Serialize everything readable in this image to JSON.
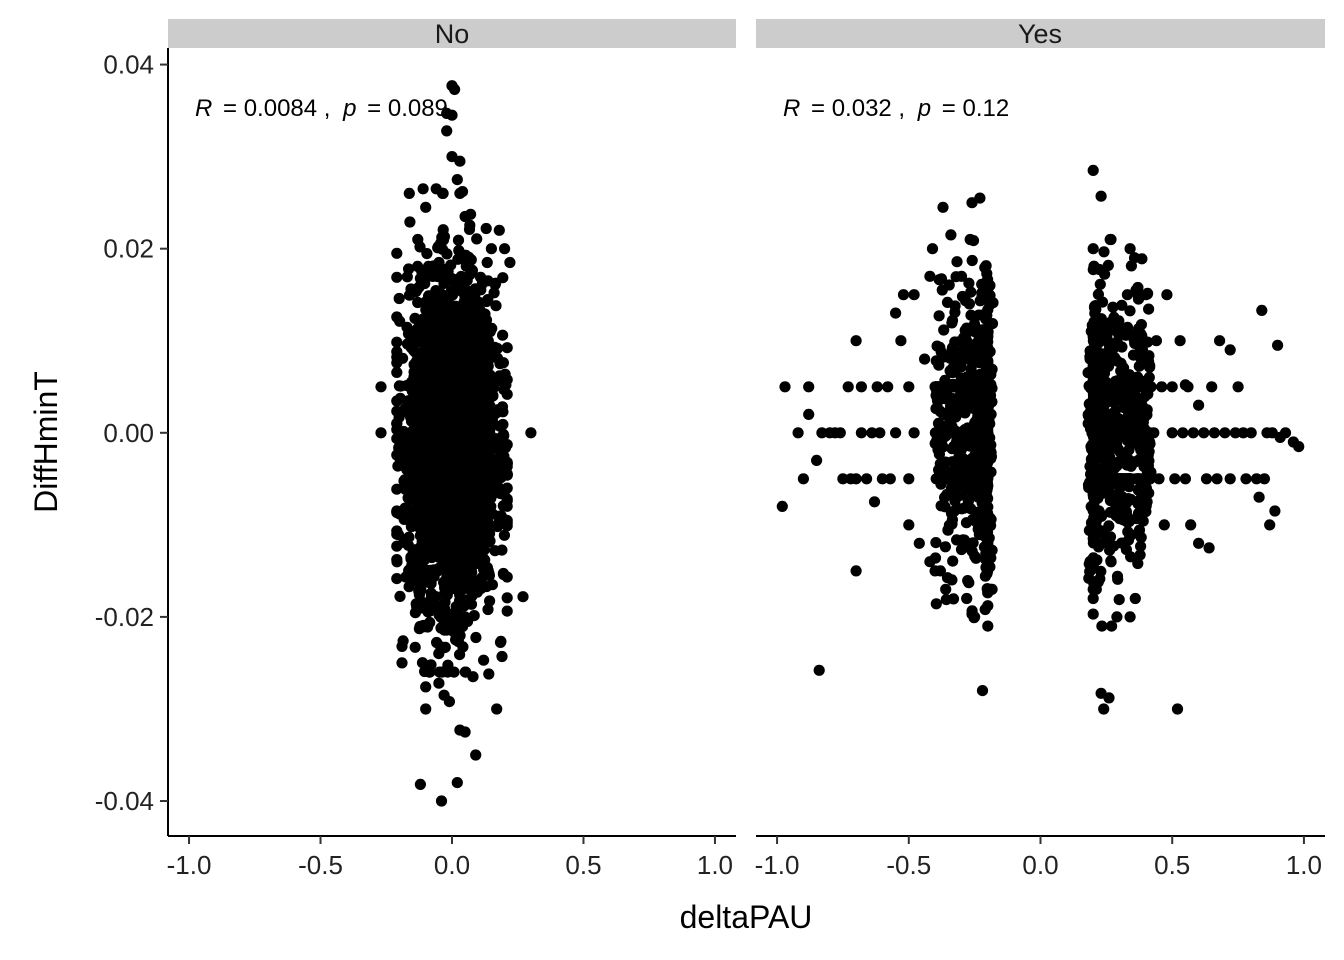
{
  "chart_data": {
    "type": "scatter",
    "xlabel": "deltaPAU",
    "ylabel": "DiffHminT",
    "xlim": [
      -1.08,
      1.08
    ],
    "ylim": [
      -0.0438,
      0.0418
    ],
    "x_ticks": [
      -1.0,
      -0.5,
      0.0,
      0.5,
      1.0
    ],
    "x_tick_labels": [
      "-1.0",
      "-0.5",
      "0.0",
      "0.5",
      "1.0"
    ],
    "y_ticks": [
      -0.04,
      -0.02,
      0.0,
      0.02,
      0.04
    ],
    "y_tick_labels": [
      "-0.04",
      "-0.02",
      "0.00",
      "0.02",
      "0.04"
    ],
    "grid": false,
    "point_color": "#000000",
    "strip_color": "#cccccc",
    "panels": [
      {
        "strip_label": "No",
        "stat": {
          "r_label": "R",
          "r_value": "= 0.0084 ,",
          "p_label": "p",
          "p_value": "= 0.089"
        },
        "distribution": {
          "x_center": 0.0,
          "x_sd": 0.082,
          "x_range": [
            -0.21,
            0.21
          ],
          "y_center": -0.001,
          "y_sd": 0.0085,
          "y_range": [
            -0.026,
            0.026
          ],
          "bulk_count": 3200
        },
        "points": [
          [
            -0.27,
            0.005
          ],
          [
            -0.27,
            0.0
          ],
          [
            0.3,
            0.0
          ],
          [
            0.27,
            -0.0178
          ],
          [
            0.0,
            0.0377
          ],
          [
            0.01,
            0.0373
          ],
          [
            -0.02,
            0.0347
          ],
          [
            0.0,
            0.0345
          ],
          [
            -0.02,
            0.0328
          ],
          [
            0.03,
            0.0295
          ],
          [
            0.0,
            0.03
          ],
          [
            0.02,
            0.0275
          ],
          [
            -0.11,
            0.0265
          ],
          [
            -0.06,
            0.0265
          ],
          [
            0.04,
            0.0262
          ],
          [
            -0.1,
            0.0245
          ],
          [
            0.05,
            0.0235
          ],
          [
            0.15,
            0.02
          ],
          [
            0.2,
            0.02
          ],
          [
            -0.16,
            0.0229
          ],
          [
            -0.19,
            -0.0232
          ],
          [
            -0.19,
            -0.025
          ],
          [
            -0.08,
            -0.0252
          ],
          [
            -0.1,
            -0.0276
          ],
          [
            -0.05,
            -0.0272
          ],
          [
            -0.03,
            -0.0285
          ],
          [
            -0.01,
            -0.0292
          ],
          [
            -0.1,
            -0.03
          ],
          [
            0.17,
            -0.03
          ],
          [
            0.03,
            -0.0323
          ],
          [
            0.05,
            -0.0325
          ],
          [
            0.09,
            -0.035
          ],
          [
            -0.12,
            -0.0382
          ],
          [
            0.02,
            -0.038
          ],
          [
            -0.04,
            -0.04
          ],
          [
            0.08,
            -0.0265
          ],
          [
            0.14,
            -0.0262
          ],
          [
            0.19,
            -0.0243
          ],
          [
            -0.14,
            -0.0233
          ],
          [
            0.12,
            -0.0247
          ],
          [
            0.22,
            0.0185
          ],
          [
            -0.21,
            0.0195
          ],
          [
            0.18,
            0.022
          ],
          [
            -0.13,
            0.021
          ]
        ]
      },
      {
        "strip_label": "Yes",
        "stat": {
          "r_label": "R",
          "r_value": "= 0.032 ,",
          "p_label": "p",
          "p_value": "= 0.12"
        },
        "rows_y": [
          -0.005,
          0.0,
          0.005
        ],
        "row_points_per_cluster": 160,
        "clusters": [
          {
            "x_range": [
              -0.4,
              -0.2
            ],
            "y_sd": 0.0075,
            "count": 560
          },
          {
            "x_range": [
              0.2,
              0.42
            ],
            "y_sd": 0.0075,
            "count": 560
          }
        ],
        "points": [
          [
            -0.98,
            -0.008
          ],
          [
            -0.97,
            0.005
          ],
          [
            -0.92,
            0.0
          ],
          [
            -0.9,
            -0.005
          ],
          [
            -0.88,
            0.002
          ],
          [
            -0.88,
            0.005
          ],
          [
            -0.85,
            -0.003
          ],
          [
            -0.84,
            -0.0258
          ],
          [
            -0.83,
            0.0
          ],
          [
            -0.8,
            0.0
          ],
          [
            -0.78,
            0.0
          ],
          [
            -0.76,
            0.0
          ],
          [
            -0.75,
            -0.005
          ],
          [
            -0.73,
            0.005
          ],
          [
            -0.72,
            -0.005
          ],
          [
            -0.7,
            -0.005
          ],
          [
            -0.7,
            -0.015
          ],
          [
            -0.7,
            0.01
          ],
          [
            -0.68,
            0.0
          ],
          [
            -0.68,
            0.005
          ],
          [
            -0.66,
            -0.005
          ],
          [
            -0.64,
            0.0
          ],
          [
            -0.63,
            -0.0075
          ],
          [
            -0.62,
            0.005
          ],
          [
            -0.61,
            0.0
          ],
          [
            -0.6,
            -0.005
          ],
          [
            -0.58,
            0.005
          ],
          [
            -0.57,
            -0.005
          ],
          [
            -0.55,
            0.0
          ],
          [
            -0.55,
            0.013
          ],
          [
            -0.53,
            0.01
          ],
          [
            -0.52,
            0.015
          ],
          [
            -0.5,
            0.005
          ],
          [
            -0.5,
            -0.005
          ],
          [
            -0.5,
            -0.01
          ],
          [
            -0.48,
            0.0
          ],
          [
            -0.48,
            0.015
          ],
          [
            -0.46,
            -0.012
          ],
          [
            -0.44,
            0.008
          ],
          [
            -0.42,
            -0.014
          ],
          [
            -0.42,
            0.017
          ],
          [
            -0.41,
            0.02
          ],
          [
            -0.4,
            -0.015
          ],
          [
            -0.38,
            -0.015
          ],
          [
            -0.37,
            0.0245
          ],
          [
            -0.36,
            -0.017
          ],
          [
            -0.34,
            0.0215
          ],
          [
            -0.3,
            0.017
          ],
          [
            -0.28,
            -0.018
          ],
          [
            -0.26,
            0.025
          ],
          [
            -0.25,
            -0.02
          ],
          [
            -0.23,
            0.0255
          ],
          [
            -0.22,
            -0.028
          ],
          [
            -0.21,
            -0.0192
          ],
          [
            -0.26,
            -0.0197
          ],
          [
            -0.27,
            0.014
          ],
          [
            0.2,
            0.0285
          ],
          [
            0.23,
            0.0257
          ],
          [
            0.2,
            0.02
          ],
          [
            0.2,
            -0.018
          ],
          [
            0.2,
            -0.0197
          ],
          [
            0.23,
            -0.0283
          ],
          [
            0.24,
            -0.03
          ],
          [
            0.26,
            -0.0288
          ],
          [
            0.27,
            -0.021
          ],
          [
            0.29,
            -0.02
          ],
          [
            0.34,
            -0.02
          ],
          [
            0.36,
            -0.018
          ],
          [
            0.34,
            0.02
          ],
          [
            0.33,
            0.015
          ],
          [
            0.37,
            0.015
          ],
          [
            0.4,
            0.015
          ],
          [
            0.42,
            0.005
          ],
          [
            0.43,
            0.0
          ],
          [
            0.44,
            0.01
          ],
          [
            0.45,
            -0.005
          ],
          [
            0.46,
            0.005
          ],
          [
            0.47,
            -0.01
          ],
          [
            0.48,
            0.015
          ],
          [
            0.5,
            0.0
          ],
          [
            0.5,
            0.005
          ],
          [
            0.51,
            -0.005
          ],
          [
            0.52,
            -0.03
          ],
          [
            0.53,
            0.01
          ],
          [
            0.54,
            0.0
          ],
          [
            0.55,
            -0.005
          ],
          [
            0.56,
            0.005
          ],
          [
            0.57,
            -0.01
          ],
          [
            0.58,
            0.0
          ],
          [
            0.6,
            -0.012
          ],
          [
            0.6,
            0.003
          ],
          [
            0.62,
            0.0
          ],
          [
            0.63,
            -0.005
          ],
          [
            0.65,
            0.005
          ],
          [
            0.66,
            0.0
          ],
          [
            0.67,
            -0.005
          ],
          [
            0.68,
            0.01
          ],
          [
            0.7,
            0.0
          ],
          [
            0.72,
            -0.005
          ],
          [
            0.74,
            0.0
          ],
          [
            0.75,
            0.005
          ],
          [
            0.77,
            0.0
          ],
          [
            0.78,
            -0.005
          ],
          [
            0.8,
            0.0
          ],
          [
            0.82,
            -0.005
          ],
          [
            0.83,
            -0.007
          ],
          [
            0.84,
            0.0133
          ],
          [
            0.85,
            -0.005
          ],
          [
            0.86,
            0.0
          ],
          [
            0.87,
            -0.01
          ],
          [
            0.88,
            0.0
          ],
          [
            0.89,
            -0.0085
          ],
          [
            0.9,
            0.0095
          ],
          [
            0.91,
            -0.0005
          ],
          [
            0.93,
            0.0
          ],
          [
            0.96,
            -0.001
          ],
          [
            0.98,
            -0.0015
          ],
          [
            0.55,
            0.0052
          ],
          [
            0.72,
            0.009
          ],
          [
            0.64,
            -0.0125
          ]
        ]
      }
    ]
  }
}
